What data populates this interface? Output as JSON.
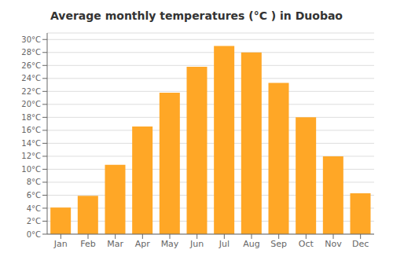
{
  "chart_data": {
    "type": "bar",
    "title": "Average monthly temperatures (°C ) in Duobao",
    "categories": [
      "Jan",
      "Feb",
      "Mar",
      "Apr",
      "May",
      "Jun",
      "Jul",
      "Aug",
      "Sep",
      "Oct",
      "Nov",
      "Dec"
    ],
    "values": [
      4.1,
      5.9,
      10.7,
      16.6,
      21.8,
      25.8,
      29.0,
      28.0,
      23.3,
      18.0,
      12.0,
      6.3
    ],
    "color": "#FFA726",
    "ylim": [
      0,
      31
    ],
    "yticks": [
      {
        "value": 0,
        "label": "0°C"
      },
      {
        "value": 2,
        "label": "2°C"
      },
      {
        "value": 4,
        "label": "4°C"
      },
      {
        "value": 6,
        "label": "6°C"
      },
      {
        "value": 8,
        "label": "8°C"
      },
      {
        "value": 10,
        "label": "10°C"
      },
      {
        "value": 12,
        "label": "12°C"
      },
      {
        "value": 14,
        "label": "14°C"
      },
      {
        "value": 16,
        "label": "16°C"
      },
      {
        "value": 18,
        "label": "18°C"
      },
      {
        "value": 20,
        "label": "20°C"
      },
      {
        "value": 22,
        "label": "22°C"
      },
      {
        "value": 24,
        "label": "24°C"
      },
      {
        "value": 26,
        "label": "26°C"
      },
      {
        "value": 28,
        "label": "28°C"
      },
      {
        "value": 30,
        "label": "30°C"
      }
    ],
    "grid": true
  }
}
